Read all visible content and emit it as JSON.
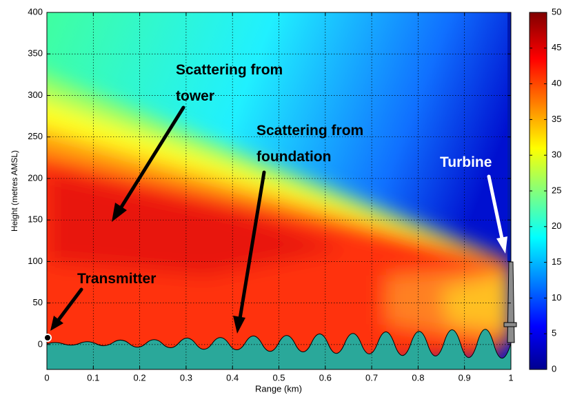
{
  "chart_data": {
    "type": "heatmap",
    "xlabel": "Range (km)",
    "ylabel": "Height (metres AMSL)",
    "xlim": [
      0,
      1
    ],
    "ylim": [
      -30,
      400
    ],
    "xticks": [
      0,
      0.1,
      0.2,
      0.3,
      0.4,
      0.5,
      0.6,
      0.7,
      0.8,
      0.9,
      1
    ],
    "yticks": [
      0,
      50,
      100,
      150,
      200,
      250,
      300,
      350,
      400
    ],
    "grid": true,
    "colorbar": {
      "lim": [
        0,
        50
      ],
      "ticks": [
        0,
        5,
        10,
        15,
        20,
        25,
        30,
        35,
        40,
        45,
        50
      ]
    },
    "annotations": [
      {
        "lines": [
          "Scattering from",
          "tower"
        ],
        "color": "#000000"
      },
      {
        "lines": [
          "Scattering from",
          "foundation"
        ],
        "color": "#000000"
      },
      {
        "lines": [
          "Turbine"
        ],
        "color": "#ffffff"
      },
      {
        "lines": [
          "Transmitter"
        ],
        "color": "#000000"
      }
    ]
  }
}
